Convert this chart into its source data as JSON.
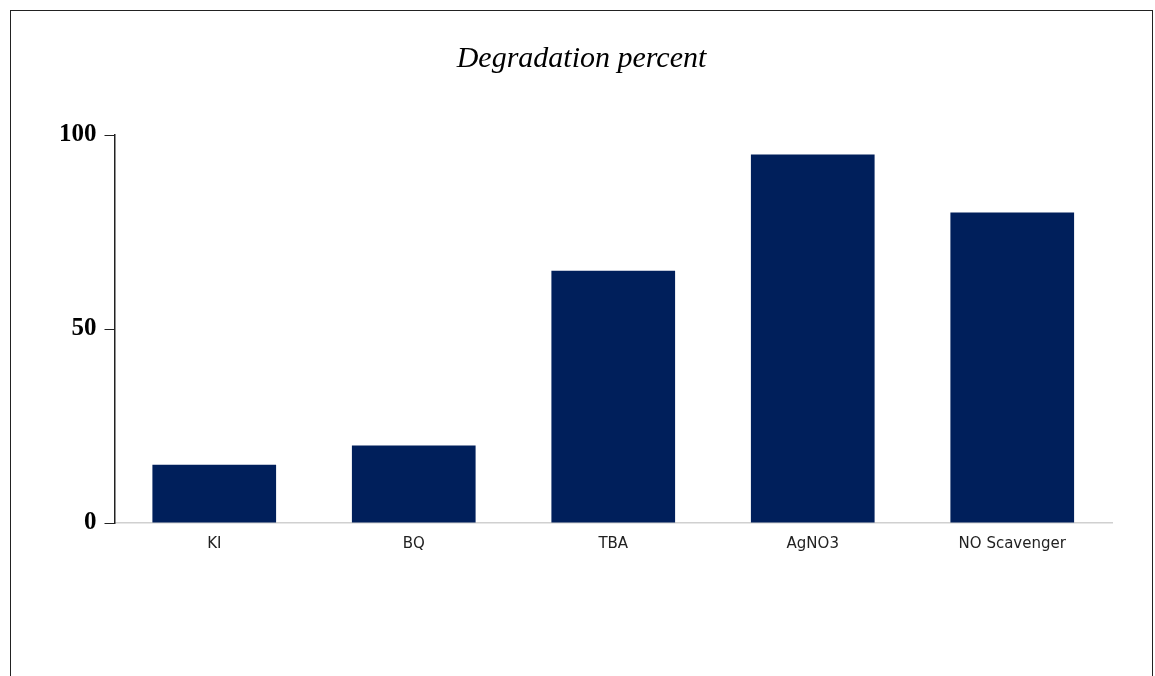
{
  "chart_data": {
    "type": "bar",
    "title": "Degradation percent",
    "categories": [
      "KI",
      "BQ",
      "TBA",
      "AgNO3",
      "NO Scavenger"
    ],
    "values": [
      15,
      20,
      65,
      95,
      80
    ],
    "color": "#001f5b",
    "ylim": [
      0,
      100
    ],
    "yticks": [
      0,
      50,
      100
    ],
    "grid": false,
    "legend": false
  }
}
